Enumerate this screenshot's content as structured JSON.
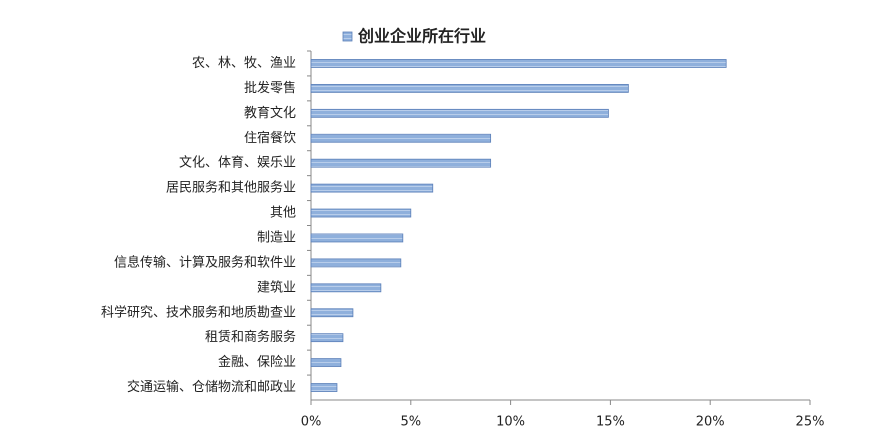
{
  "chart_data": {
    "type": "bar",
    "orientation": "horizontal",
    "categories": [
      "农、林、牧、渔业",
      "批发零售",
      "教育文化",
      "住宿餐饮",
      "文化、体育、娱乐业",
      "居民服务和其他服务业",
      "其他",
      "制造业",
      "信息传输、计算及服务和软件业",
      "建筑业",
      "科学研究、技术服务和地质勘查业",
      "租赁和商务服务",
      "金融、保险业",
      "交通运输、仓储物流和邮政业"
    ],
    "series": [
      {
        "name": "创业企业所在行业",
        "color": "#8fb0dc",
        "values": [
          20.8,
          15.9,
          14.9,
          9.0,
          9.0,
          6.1,
          5.0,
          4.6,
          4.5,
          3.5,
          2.1,
          1.6,
          1.5,
          1.3
        ]
      }
    ],
    "xlim": [
      0,
      25
    ],
    "xticks": [
      {
        "value": 0,
        "label": "0%"
      },
      {
        "value": 5,
        "label": "5%"
      },
      {
        "value": 10,
        "label": "10%"
      },
      {
        "value": 15,
        "label": "15%"
      },
      {
        "value": 20,
        "label": "20%"
      },
      {
        "value": 25,
        "label": "25%"
      }
    ],
    "legend": "top"
  }
}
